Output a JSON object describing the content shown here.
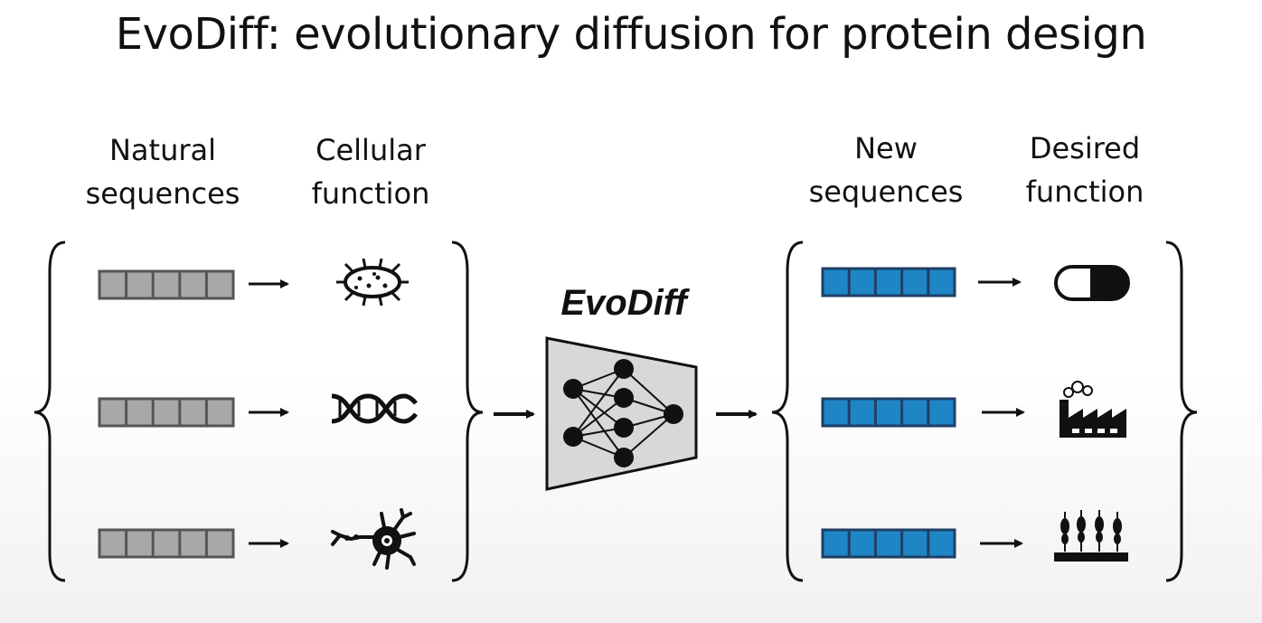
{
  "title": "EvoDiff: evolutionary diffusion for protein design",
  "labels": {
    "natural_sequences": [
      "Natural",
      "sequences"
    ],
    "cellular_function": [
      "Cellular",
      "function"
    ],
    "new_sequences": [
      "New",
      "sequences"
    ],
    "desired_function": [
      "Desired",
      "function"
    ],
    "model_name": "EvoDiff"
  },
  "icons": {
    "cellular_functions": [
      "bacterium-icon",
      "dna-icon",
      "neuron-icon"
    ],
    "desired_functions": [
      "pill-icon",
      "factory-icon",
      "wheat-crop-icon"
    ]
  },
  "colors": {
    "natural_sequence_fill": "#a8a8a8",
    "natural_sequence_stroke": "#555555",
    "new_sequence_fill": "#1f86c6",
    "new_sequence_stroke": "#1f3f66",
    "model_fill": "#d8d8d8"
  }
}
